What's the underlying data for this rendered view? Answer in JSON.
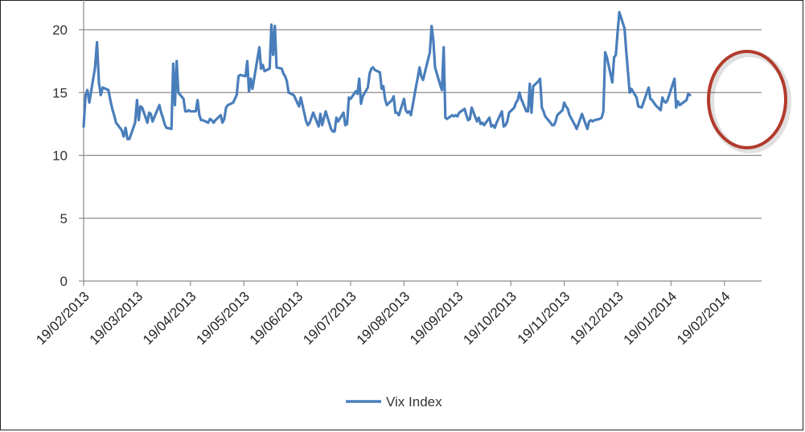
{
  "chart_data": {
    "type": "line",
    "title": "",
    "xlabel": "",
    "ylabel": "",
    "ylim": [
      0,
      22
    ],
    "yticks": [
      0,
      5,
      10,
      15,
      20
    ],
    "grid": true,
    "legend_placement": "bottom",
    "x_tick_labels": [
      "19/02/2013",
      "19/03/2013",
      "19/04/2013",
      "19/05/2013",
      "19/06/2013",
      "19/07/2013",
      "19/08/2013",
      "19/09/2013",
      "19/10/2013",
      "19/11/2013",
      "19/12/2013",
      "19/01/2014",
      "19/02/2014"
    ],
    "x_start": "2013-02-19",
    "series": [
      {
        "name": "Vix Index",
        "color": "#4a7ebb",
        "points": [
          [
            "2013-02-19",
            12.3
          ],
          [
            "2013-02-20",
            14.8
          ],
          [
            "2013-02-21",
            15.2
          ],
          [
            "2013-02-22",
            14.2
          ],
          [
            "2013-02-25",
            17.0
          ],
          [
            "2013-02-26",
            19.0
          ],
          [
            "2013-02-27",
            15.8
          ],
          [
            "2013-02-28",
            14.8
          ],
          [
            "2013-03-01",
            15.4
          ],
          [
            "2013-03-04",
            15.2
          ],
          [
            "2013-03-05",
            14.4
          ],
          [
            "2013-03-06",
            13.7
          ],
          [
            "2013-03-07",
            13.2
          ],
          [
            "2013-03-08",
            12.6
          ],
          [
            "2013-03-11",
            12.0
          ],
          [
            "2013-03-12",
            11.5
          ],
          [
            "2013-03-13",
            12.2
          ],
          [
            "2013-03-14",
            11.3
          ],
          [
            "2013-03-15",
            11.3
          ],
          [
            "2013-03-18",
            12.6
          ],
          [
            "2013-03-19",
            14.4
          ],
          [
            "2013-03-20",
            12.8
          ],
          [
            "2013-03-21",
            13.9
          ],
          [
            "2013-03-22",
            13.8
          ],
          [
            "2013-03-25",
            12.6
          ],
          [
            "2013-03-26",
            13.4
          ],
          [
            "2013-03-27",
            13.3
          ],
          [
            "2013-03-28",
            12.7
          ],
          [
            "2013-04-01",
            14.0
          ],
          [
            "2013-04-02",
            13.4
          ],
          [
            "2013-04-03",
            13.0
          ],
          [
            "2013-04-04",
            12.5
          ],
          [
            "2013-04-05",
            12.2
          ],
          [
            "2013-04-08",
            12.1
          ],
          [
            "2013-04-09",
            17.3
          ],
          [
            "2013-04-10",
            14.0
          ],
          [
            "2013-04-11",
            17.5
          ],
          [
            "2013-04-12",
            15.0
          ],
          [
            "2013-04-15",
            14.5
          ],
          [
            "2013-04-16",
            13.5
          ],
          [
            "2013-04-17",
            13.5
          ],
          [
            "2013-04-18",
            13.6
          ],
          [
            "2013-04-19",
            13.5
          ],
          [
            "2013-04-22",
            13.5
          ],
          [
            "2013-04-23",
            14.4
          ],
          [
            "2013-04-24",
            13.2
          ],
          [
            "2013-04-25",
            12.8
          ],
          [
            "2013-04-26",
            12.8
          ],
          [
            "2013-04-29",
            12.6
          ],
          [
            "2013-04-30",
            12.9
          ],
          [
            "2013-05-01",
            12.8
          ],
          [
            "2013-05-02",
            12.6
          ],
          [
            "2013-05-03",
            12.8
          ],
          [
            "2013-05-06",
            13.2
          ],
          [
            "2013-05-07",
            12.6
          ],
          [
            "2013-05-08",
            12.9
          ],
          [
            "2013-05-09",
            13.8
          ],
          [
            "2013-05-10",
            14.0
          ],
          [
            "2013-05-13",
            14.2
          ],
          [
            "2013-05-14",
            14.5
          ],
          [
            "2013-05-15",
            14.8
          ],
          [
            "2013-05-16",
            16.3
          ],
          [
            "2013-05-17",
            16.4
          ],
          [
            "2013-05-20",
            16.3
          ],
          [
            "2013-05-21",
            17.5
          ],
          [
            "2013-05-22",
            15.1
          ],
          [
            "2013-05-23",
            16.1
          ],
          [
            "2013-05-24",
            15.3
          ],
          [
            "2013-05-28",
            18.6
          ],
          [
            "2013-05-29",
            16.9
          ],
          [
            "2013-05-30",
            17.2
          ],
          [
            "2013-05-31",
            16.7
          ],
          [
            "2013-06-03",
            16.9
          ],
          [
            "2013-06-04",
            20.4
          ],
          [
            "2013-06-05",
            18.0
          ],
          [
            "2013-06-06",
            20.3
          ],
          [
            "2013-06-07",
            17.0
          ],
          [
            "2013-06-10",
            16.9
          ],
          [
            "2013-06-11",
            16.5
          ],
          [
            "2013-06-12",
            16.3
          ],
          [
            "2013-06-13",
            15.9
          ],
          [
            "2013-06-14",
            15.0
          ],
          [
            "2013-06-17",
            14.8
          ],
          [
            "2013-06-18",
            14.5
          ],
          [
            "2013-06-19",
            14.2
          ],
          [
            "2013-06-20",
            13.9
          ],
          [
            "2013-06-21",
            14.6
          ],
          [
            "2013-06-24",
            12.7
          ],
          [
            "2013-06-25",
            12.4
          ],
          [
            "2013-06-26",
            12.6
          ],
          [
            "2013-06-27",
            13.0
          ],
          [
            "2013-06-28",
            13.4
          ],
          [
            "2013-07-01",
            12.3
          ],
          [
            "2013-07-02",
            13.3
          ],
          [
            "2013-07-03",
            12.4
          ],
          [
            "2013-07-05",
            13.5
          ],
          [
            "2013-07-08",
            12.1
          ],
          [
            "2013-07-09",
            11.9
          ],
          [
            "2013-07-10",
            11.9
          ],
          [
            "2013-07-11",
            13.0
          ],
          [
            "2013-07-12",
            12.7
          ],
          [
            "2013-07-15",
            13.4
          ],
          [
            "2013-07-16",
            12.4
          ],
          [
            "2013-07-17",
            12.5
          ],
          [
            "2013-07-18",
            14.6
          ],
          [
            "2013-07-19",
            14.5
          ],
          [
            "2013-07-22",
            15.1
          ],
          [
            "2013-07-23",
            14.9
          ],
          [
            "2013-07-24",
            16.1
          ],
          [
            "2013-07-25",
            14.1
          ],
          [
            "2013-07-26",
            14.7
          ],
          [
            "2013-07-29",
            15.4
          ],
          [
            "2013-07-30",
            16.5
          ],
          [
            "2013-07-31",
            16.9
          ],
          [
            "2013-08-01",
            17.0
          ],
          [
            "2013-08-02",
            16.8
          ],
          [
            "2013-08-05",
            16.6
          ],
          [
            "2013-08-06",
            15.3
          ],
          [
            "2013-08-07",
            15.5
          ],
          [
            "2013-08-08",
            14.5
          ],
          [
            "2013-08-09",
            14.0
          ],
          [
            "2013-08-12",
            14.4
          ],
          [
            "2013-08-13",
            14.7
          ],
          [
            "2013-08-14",
            13.4
          ],
          [
            "2013-08-15",
            13.4
          ],
          [
            "2013-08-16",
            13.2
          ],
          [
            "2013-08-19",
            14.5
          ],
          [
            "2013-08-20",
            13.6
          ],
          [
            "2013-08-21",
            13.4
          ],
          [
            "2013-08-22",
            13.5
          ],
          [
            "2013-08-23",
            13.2
          ],
          [
            "2013-08-26",
            15.5
          ],
          [
            "2013-08-27",
            16.2
          ],
          [
            "2013-08-28",
            17.0
          ],
          [
            "2013-08-29",
            16.3
          ],
          [
            "2013-08-30",
            16.0
          ],
          [
            "2013-09-03",
            18.2
          ],
          [
            "2013-09-04",
            20.3
          ],
          [
            "2013-09-05",
            19.2
          ],
          [
            "2013-09-06",
            17.0
          ],
          [
            "2013-09-09",
            15.6
          ],
          [
            "2013-09-10",
            15.2
          ],
          [
            "2013-09-11",
            18.6
          ],
          [
            "2013-09-12",
            13.0
          ],
          [
            "2013-09-13",
            12.9
          ],
          [
            "2013-09-16",
            13.2
          ],
          [
            "2013-09-17",
            13.1
          ],
          [
            "2013-09-18",
            13.2
          ],
          [
            "2013-09-19",
            13.1
          ],
          [
            "2013-09-20",
            13.4
          ],
          [
            "2013-09-23",
            13.7
          ],
          [
            "2013-09-24",
            13.2
          ],
          [
            "2013-09-25",
            12.8
          ],
          [
            "2013-09-26",
            12.9
          ],
          [
            "2013-09-27",
            13.8
          ],
          [
            "2013-09-30",
            12.7
          ],
          [
            "2013-10-01",
            13.0
          ],
          [
            "2013-10-02",
            12.5
          ],
          [
            "2013-10-03",
            12.6
          ],
          [
            "2013-10-04",
            12.4
          ],
          [
            "2013-10-07",
            13.0
          ],
          [
            "2013-10-08",
            12.3
          ],
          [
            "2013-10-09",
            12.4
          ],
          [
            "2013-10-10",
            12.2
          ],
          [
            "2013-10-11",
            12.6
          ],
          [
            "2013-10-14",
            13.5
          ],
          [
            "2013-10-15",
            12.3
          ],
          [
            "2013-10-16",
            12.4
          ],
          [
            "2013-10-17",
            12.7
          ],
          [
            "2013-10-18",
            13.4
          ],
          [
            "2013-10-21",
            13.8
          ],
          [
            "2013-10-22",
            14.2
          ],
          [
            "2013-10-23",
            14.4
          ],
          [
            "2013-10-24",
            15.0
          ],
          [
            "2013-10-25",
            14.5
          ],
          [
            "2013-10-28",
            13.5
          ],
          [
            "2013-10-29",
            13.5
          ],
          [
            "2013-10-30",
            15.7
          ],
          [
            "2013-10-31",
            13.4
          ],
          [
            "2013-11-01",
            15.5
          ],
          [
            "2013-11-04",
            15.9
          ],
          [
            "2013-11-05",
            16.1
          ],
          [
            "2013-11-06",
            13.8
          ],
          [
            "2013-11-07",
            13.5
          ],
          [
            "2013-11-08",
            13.1
          ],
          [
            "2013-11-11",
            12.6
          ],
          [
            "2013-11-12",
            12.4
          ],
          [
            "2013-11-13",
            12.4
          ],
          [
            "2013-11-14",
            12.7
          ],
          [
            "2013-11-15",
            13.2
          ],
          [
            "2013-11-18",
            13.6
          ],
          [
            "2013-11-19",
            14.2
          ],
          [
            "2013-11-20",
            13.9
          ],
          [
            "2013-11-21",
            13.7
          ],
          [
            "2013-11-22",
            13.2
          ],
          [
            "2013-11-25",
            12.4
          ],
          [
            "2013-11-26",
            12.1
          ],
          [
            "2013-11-27",
            12.5
          ],
          [
            "2013-11-29",
            13.3
          ],
          [
            "2013-12-02",
            12.1
          ],
          [
            "2013-12-03",
            12.7
          ],
          [
            "2013-12-04",
            12.8
          ],
          [
            "2013-12-05",
            12.7
          ],
          [
            "2013-12-06",
            12.8
          ],
          [
            "2013-12-09",
            12.9
          ],
          [
            "2013-12-10",
            13.0
          ],
          [
            "2013-12-11",
            13.5
          ],
          [
            "2013-12-12",
            18.2
          ],
          [
            "2013-12-13",
            17.8
          ],
          [
            "2013-12-16",
            15.8
          ],
          [
            "2013-12-17",
            17.8
          ],
          [
            "2013-12-18",
            18.0
          ],
          [
            "2013-12-19",
            19.8
          ],
          [
            "2013-12-20",
            21.4
          ],
          [
            "2013-12-23",
            20.1
          ],
          [
            "2013-12-24",
            18.3
          ],
          [
            "2013-12-26",
            15.0
          ],
          [
            "2013-12-27",
            15.3
          ],
          [
            "2013-12-30",
            14.6
          ],
          [
            "2013-12-31",
            13.9
          ],
          [
            "2014-01-02",
            13.8
          ],
          [
            "2014-01-03",
            14.2
          ],
          [
            "2014-01-06",
            15.4
          ],
          [
            "2014-01-07",
            14.5
          ],
          [
            "2014-01-08",
            14.4
          ],
          [
            "2014-01-09",
            14.2
          ],
          [
            "2014-01-10",
            14.0
          ],
          [
            "2014-01-13",
            13.6
          ],
          [
            "2014-01-14",
            14.6
          ],
          [
            "2014-01-15",
            14.3
          ],
          [
            "2014-01-16",
            14.2
          ],
          [
            "2014-01-17",
            14.4
          ],
          [
            "2014-01-21",
            16.1
          ],
          [
            "2014-01-22",
            13.8
          ],
          [
            "2014-01-23",
            14.3
          ],
          [
            "2014-01-24",
            14.0
          ],
          [
            "2014-01-27",
            14.3
          ],
          [
            "2014-01-28",
            14.4
          ],
          [
            "2014-01-29",
            14.9
          ],
          [
            "2014-01-30",
            14.8
          ]
        ]
      }
    ]
  }
}
